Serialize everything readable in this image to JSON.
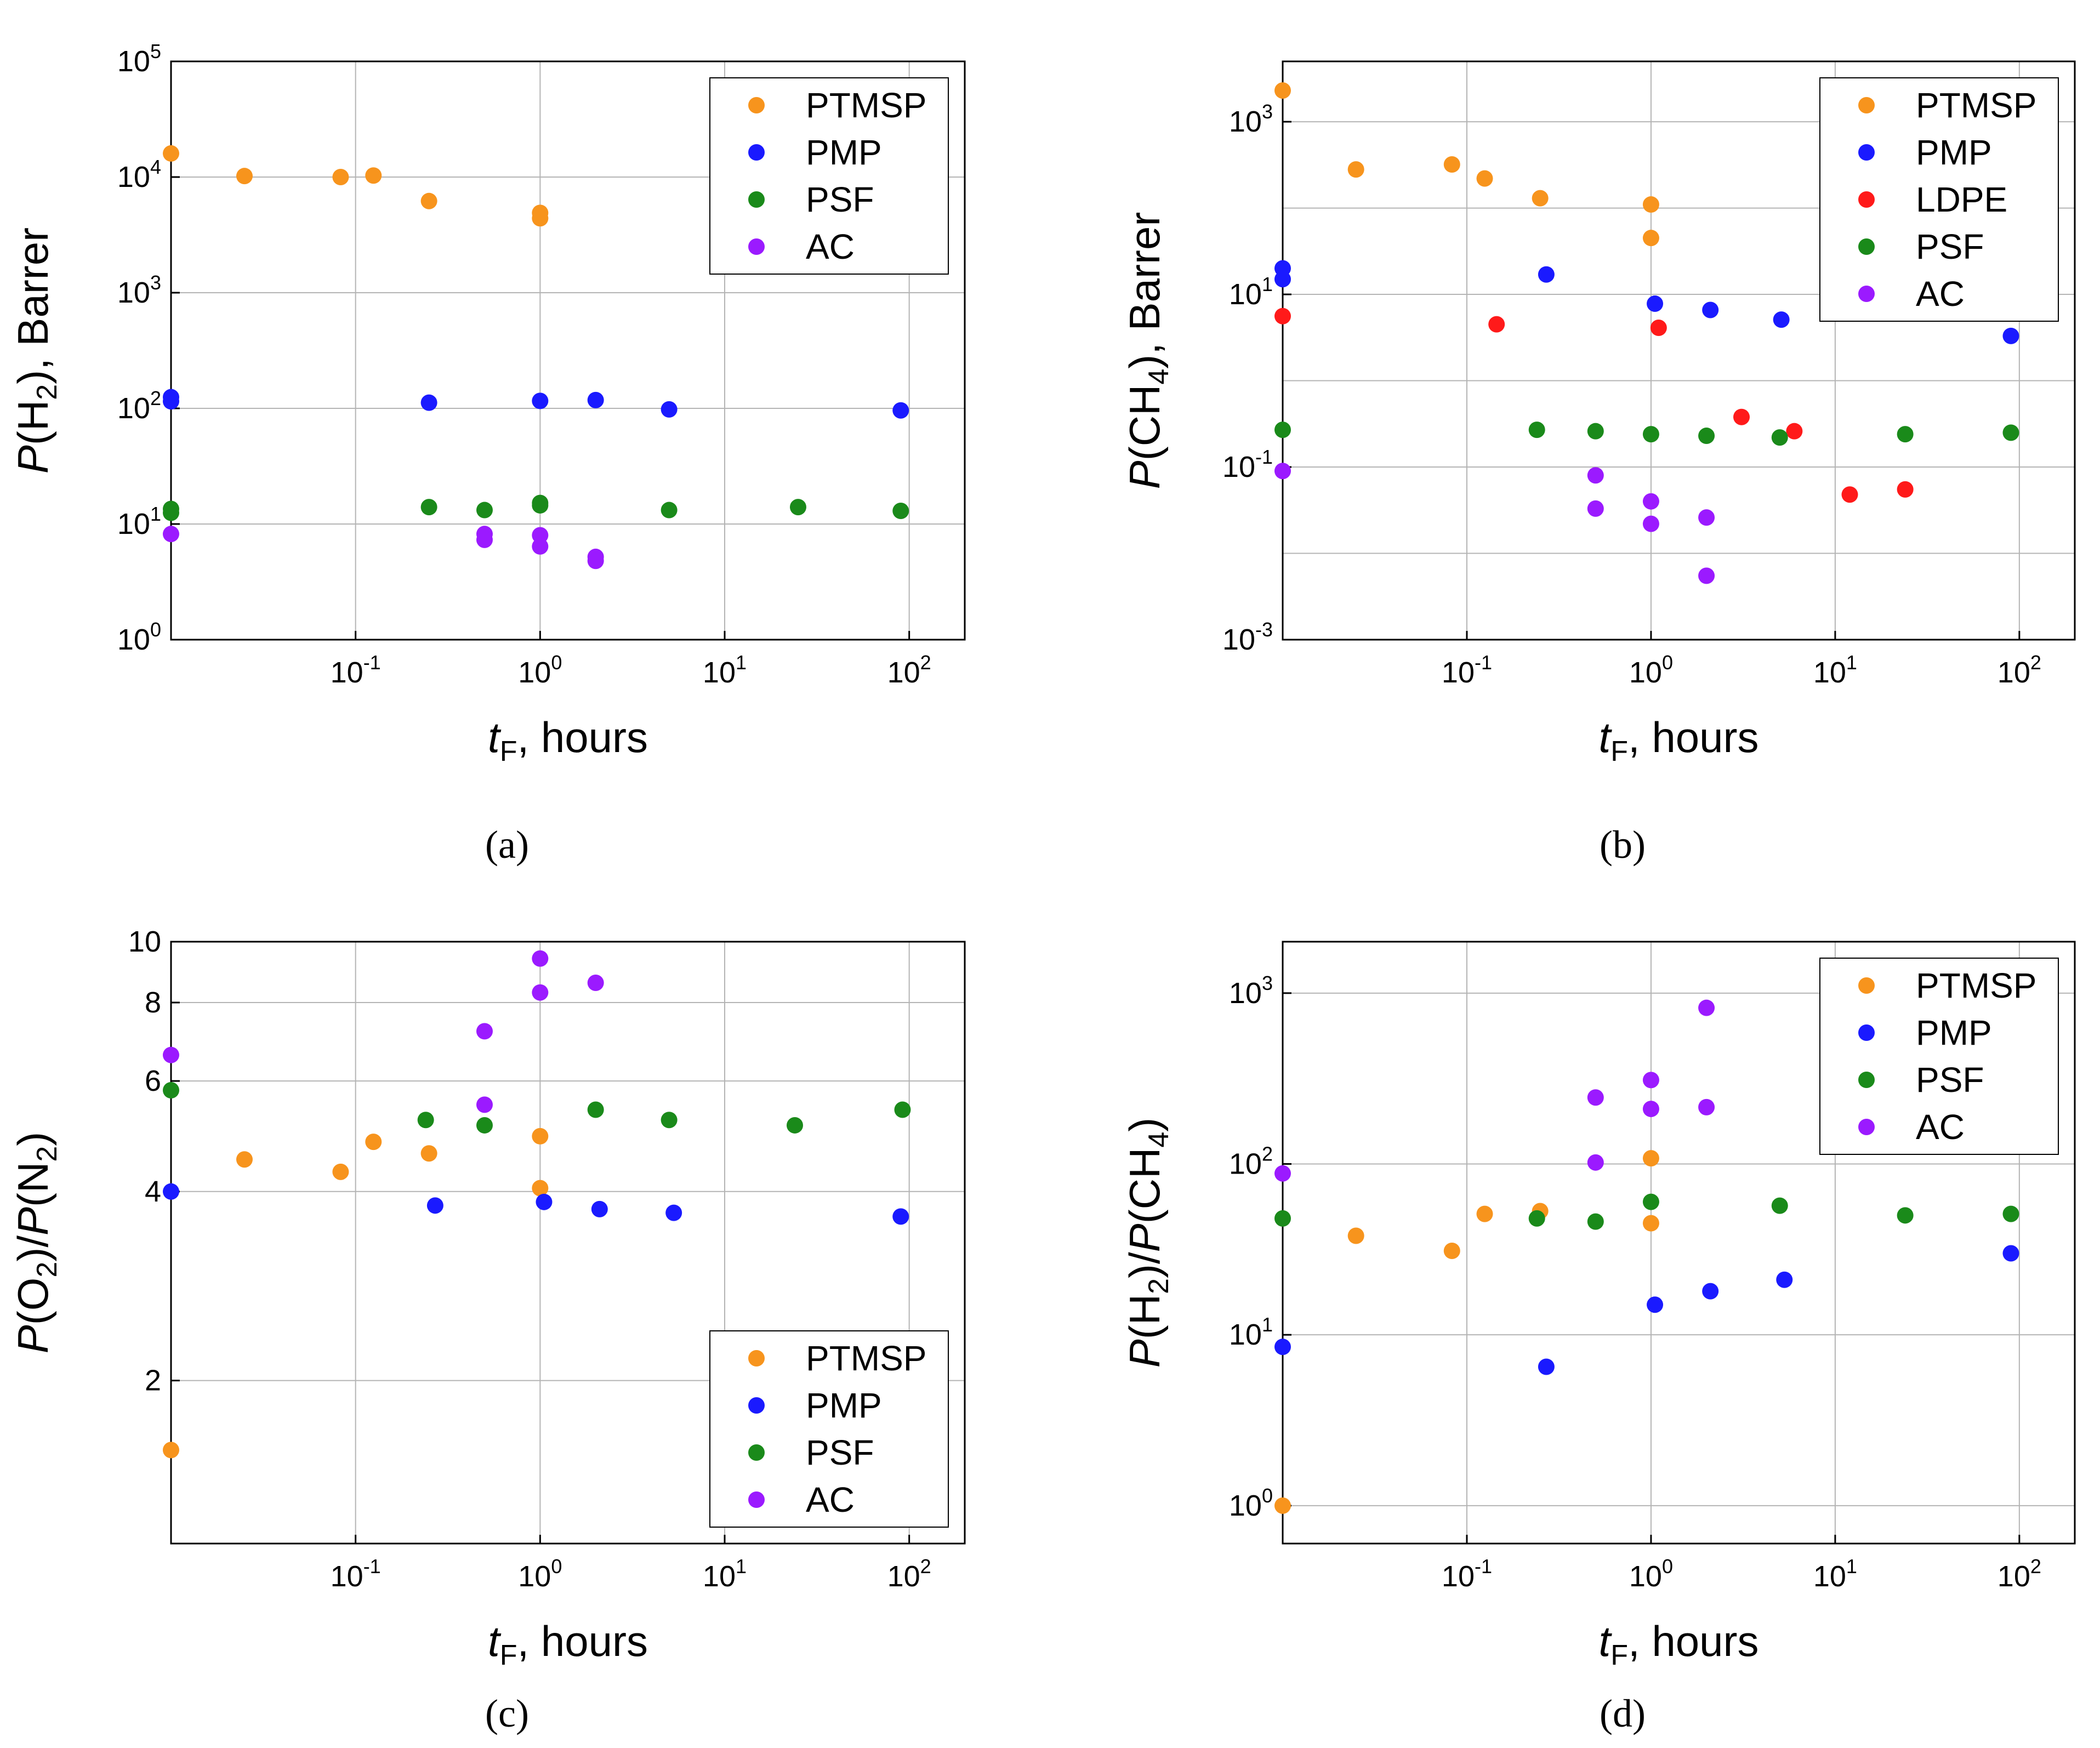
{
  "figure": {
    "panel_labels": [
      "(a)",
      "(b)",
      "(c)",
      "(d)"
    ]
  },
  "colors": {
    "PTMSP": "#f7941d",
    "PMP": "#1a1aff",
    "LDPE": "#ff1a1a",
    "PSF": "#1a8a1a",
    "AC": "#9b1aff"
  },
  "chart_data": [
    {
      "id": "a",
      "type": "scatter",
      "xscale": "log",
      "yscale": "log",
      "xlim": [
        0.01,
        200
      ],
      "ylim": [
        1,
        100000
      ],
      "xticks": [
        {
          "v": 0.1,
          "base": "10",
          "exp": "-1"
        },
        {
          "v": 1,
          "base": "10",
          "exp": "0"
        },
        {
          "v": 10,
          "base": "10",
          "exp": "1"
        },
        {
          "v": 100,
          "base": "10",
          "exp": "2"
        }
      ],
      "yticks": [
        {
          "v": 1,
          "base": "10",
          "exp": "0"
        },
        {
          "v": 10,
          "base": "10",
          "exp": "1"
        },
        {
          "v": 100,
          "base": "10",
          "exp": "2"
        },
        {
          "v": 1000,
          "base": "10",
          "exp": "3"
        },
        {
          "v": 10000,
          "base": "10",
          "exp": "4"
        },
        {
          "v": 100000,
          "base": "10",
          "exp": "5"
        }
      ],
      "xgrid": [
        0.1,
        1,
        10,
        100
      ],
      "ygrid": [
        1,
        10,
        100,
        1000,
        10000,
        100000
      ],
      "xlabel": {
        "italic": "t",
        "sub": "F",
        "rest": ", hours"
      },
      "ylabel": {
        "italic": "P",
        "pre": "(H",
        "sub": "2",
        "post": "), Barrer"
      },
      "legend": {
        "position": "top-right",
        "entries": [
          "PTMSP",
          "PMP",
          "PSF",
          "AC"
        ]
      },
      "series": [
        {
          "name": "PTMSP",
          "points": [
            [
              0.01,
              16000
            ],
            [
              0.025,
              10200
            ],
            [
              0.083,
              10000
            ],
            [
              0.125,
              10300
            ],
            [
              0.25,
              6200
            ],
            [
              1,
              4900
            ],
            [
              1,
              4400
            ]
          ]
        },
        {
          "name": "PMP",
          "points": [
            [
              0.01,
              125
            ],
            [
              0.01,
              115
            ],
            [
              0.25,
              112
            ],
            [
              1,
              116
            ],
            [
              2,
              118
            ],
            [
              5,
              98
            ],
            [
              90,
              96
            ]
          ]
        },
        {
          "name": "PSF",
          "points": [
            [
              0.01,
              13.5
            ],
            [
              0.01,
              12.5
            ],
            [
              0.25,
              14
            ],
            [
              0.5,
              13.2
            ],
            [
              1,
              15.2
            ],
            [
              1,
              14.5
            ],
            [
              5,
              13.2
            ],
            [
              25,
              14
            ],
            [
              90,
              13
            ]
          ]
        },
        {
          "name": "AC",
          "points": [
            [
              0.01,
              8.2
            ],
            [
              0.5,
              8.2
            ],
            [
              0.5,
              7.3
            ],
            [
              1,
              8
            ],
            [
              1,
              6.4
            ],
            [
              2,
              5.2
            ],
            [
              2,
              4.8
            ]
          ]
        }
      ]
    },
    {
      "id": "b",
      "type": "scatter",
      "xscale": "log",
      "yscale": "log",
      "xlim": [
        0.01,
        200
      ],
      "ylim": [
        0.001,
        5000
      ],
      "xticks": [
        {
          "v": 0.1,
          "base": "10",
          "exp": "-1"
        },
        {
          "v": 1,
          "base": "10",
          "exp": "0"
        },
        {
          "v": 10,
          "base": "10",
          "exp": "1"
        },
        {
          "v": 100,
          "base": "10",
          "exp": "2"
        }
      ],
      "yticks": [
        {
          "v": 0.001,
          "base": "10",
          "exp": "-3"
        },
        {
          "v": 0.1,
          "base": "10",
          "exp": "-1"
        },
        {
          "v": 10,
          "base": "10",
          "exp": "1"
        },
        {
          "v": 1000,
          "base": "10",
          "exp": "3"
        }
      ],
      "xgrid": [
        0.1,
        1,
        10,
        100
      ],
      "ygrid": [
        0.001,
        0.01,
        0.1,
        1,
        10,
        100,
        1000
      ],
      "xlabel": {
        "italic": "t",
        "sub": "F",
        "rest": ", hours"
      },
      "ylabel": {
        "italic": "P",
        "pre": "(CH",
        "sub": "4",
        "post": "), Barrer"
      },
      "legend": {
        "position": "top-right",
        "entries": [
          "PTMSP",
          "PMP",
          "LDPE",
          "PSF",
          "AC"
        ]
      },
      "series": [
        {
          "name": "PTMSP",
          "points": [
            [
              0.01,
              2300
            ],
            [
              0.025,
              280
            ],
            [
              0.083,
              320
            ],
            [
              0.125,
              220
            ],
            [
              0.25,
              130
            ],
            [
              1,
              110
            ],
            [
              1,
              45
            ]
          ]
        },
        {
          "name": "PMP",
          "points": [
            [
              0.01,
              20
            ],
            [
              0.01,
              15
            ],
            [
              0.27,
              17
            ],
            [
              1.05,
              7.8
            ],
            [
              2.1,
              6.6
            ],
            [
              5.1,
              5.1
            ],
            [
              90,
              3.3
            ]
          ]
        },
        {
          "name": "LDPE",
          "points": [
            [
              0.01,
              5.6
            ],
            [
              0.145,
              4.5
            ],
            [
              1.1,
              4.1
            ],
            [
              3.1,
              0.38
            ],
            [
              6,
              0.26
            ],
            [
              12,
              0.048
            ],
            [
              24,
              0.055
            ]
          ]
        },
        {
          "name": "PSF",
          "points": [
            [
              0.01,
              0.27
            ],
            [
              0.24,
              0.27
            ],
            [
              0.5,
              0.26
            ],
            [
              1,
              0.24
            ],
            [
              2,
              0.23
            ],
            [
              5,
              0.22
            ],
            [
              24,
              0.24
            ],
            [
              90,
              0.25
            ]
          ]
        },
        {
          "name": "AC",
          "points": [
            [
              0.01,
              0.09
            ],
            [
              0.5,
              0.08
            ],
            [
              0.5,
              0.033
            ],
            [
              1,
              0.04
            ],
            [
              1,
              0.022
            ],
            [
              2,
              0.026
            ],
            [
              2,
              0.0055
            ]
          ]
        }
      ]
    },
    {
      "id": "c",
      "type": "scatter",
      "xscale": "log",
      "yscale": "log",
      "xlim": [
        0.01,
        200
      ],
      "ylim": [
        1.1,
        10
      ],
      "xticks": [
        {
          "v": 0.1,
          "base": "10",
          "exp": "-1"
        },
        {
          "v": 1,
          "base": "10",
          "exp": "0"
        },
        {
          "v": 10,
          "base": "10",
          "exp": "1"
        },
        {
          "v": 100,
          "base": "10",
          "exp": "2"
        }
      ],
      "yticks": [
        {
          "v": 2,
          "label": "2"
        },
        {
          "v": 4,
          "label": "4"
        },
        {
          "v": 6,
          "label": "6"
        },
        {
          "v": 8,
          "label": "8"
        },
        {
          "v": 10,
          "label": "10"
        }
      ],
      "xgrid": [
        0.1,
        1,
        10,
        100
      ],
      "ygrid": [
        2,
        4,
        6,
        8,
        10
      ],
      "xlabel": {
        "italic": "t",
        "sub": "F",
        "rest": ", hours"
      },
      "ylabel": {
        "italic": "P",
        "pre": "(O",
        "sub": "2",
        "post": ")/",
        "italic2": "P",
        "pre2": "(N",
        "sub2": "2",
        "post2": ")"
      },
      "legend": {
        "position": "bottom-right",
        "entries": [
          "PTMSP",
          "PMP",
          "PSF",
          "AC"
        ]
      },
      "series": [
        {
          "name": "PTMSP",
          "points": [
            [
              0.01,
              1.55
            ],
            [
              0.025,
              4.5
            ],
            [
              0.083,
              4.3
            ],
            [
              0.125,
              4.8
            ],
            [
              0.25,
              4.6
            ],
            [
              1,
              4.9
            ],
            [
              1,
              4.05
            ]
          ]
        },
        {
          "name": "PMP",
          "points": [
            [
              0.01,
              4
            ],
            [
              0.27,
              3.8
            ],
            [
              1.05,
              3.85
            ],
            [
              2.1,
              3.75
            ],
            [
              5.3,
              3.7
            ],
            [
              90,
              3.65
            ]
          ]
        },
        {
          "name": "PSF",
          "points": [
            [
              0.01,
              5.8
            ],
            [
              0.24,
              5.2
            ],
            [
              0.5,
              5.1
            ],
            [
              2,
              5.4
            ],
            [
              5,
              5.2
            ],
            [
              24,
              5.1
            ],
            [
              92,
              5.4
            ]
          ]
        },
        {
          "name": "AC",
          "points": [
            [
              0.01,
              6.6
            ],
            [
              0.5,
              7.2
            ],
            [
              0.5,
              5.5
            ],
            [
              1,
              9.4
            ],
            [
              1,
              8.3
            ],
            [
              2,
              8.6
            ]
          ]
        }
      ]
    },
    {
      "id": "d",
      "type": "scatter",
      "xscale": "log",
      "yscale": "log",
      "xlim": [
        0.01,
        200
      ],
      "ylim": [
        0.6,
        2000
      ],
      "xticks": [
        {
          "v": 0.1,
          "base": "10",
          "exp": "-1"
        },
        {
          "v": 1,
          "base": "10",
          "exp": "0"
        },
        {
          "v": 10,
          "base": "10",
          "exp": "1"
        },
        {
          "v": 100,
          "base": "10",
          "exp": "2"
        }
      ],
      "yticks": [
        {
          "v": 1,
          "base": "10",
          "exp": "0"
        },
        {
          "v": 10,
          "base": "10",
          "exp": "1"
        },
        {
          "v": 100,
          "base": "10",
          "exp": "2"
        },
        {
          "v": 1000,
          "base": "10",
          "exp": "3"
        }
      ],
      "xgrid": [
        0.1,
        1,
        10,
        100
      ],
      "ygrid": [
        1,
        10,
        100,
        1000
      ],
      "xlabel": {
        "italic": "t",
        "sub": "F",
        "rest": ", hours"
      },
      "ylabel": {
        "italic": "P",
        "pre": "(H",
        "sub": "2",
        "post": ")/",
        "italic2": "P",
        "pre2": "(CH",
        "sub2": "4",
        "post2": ")"
      },
      "legend": {
        "position": "top-right",
        "entries": [
          "PTMSP",
          "PMP",
          "PSF",
          "AC"
        ]
      },
      "series": [
        {
          "name": "PTMSP",
          "points": [
            [
              0.01,
              1
            ],
            [
              0.025,
              38
            ],
            [
              0.083,
              31
            ],
            [
              0.125,
              51
            ],
            [
              0.25,
              53
            ],
            [
              1,
              108
            ],
            [
              1,
              45
            ]
          ]
        },
        {
          "name": "PMP",
          "points": [
            [
              0.01,
              8.5
            ],
            [
              0.27,
              6.5
            ],
            [
              1.05,
              15
            ],
            [
              2.1,
              18
            ],
            [
              5.3,
              21
            ],
            [
              90,
              30
            ]
          ]
        },
        {
          "name": "PSF",
          "points": [
            [
              0.01,
              48
            ],
            [
              0.24,
              48
            ],
            [
              0.5,
              46
            ],
            [
              1,
              60
            ],
            [
              5,
              57
            ],
            [
              24,
              50
            ],
            [
              90,
              51
            ]
          ]
        },
        {
          "name": "AC",
          "points": [
            [
              0.01,
              88
            ],
            [
              0.5,
              245
            ],
            [
              0.5,
              102
            ],
            [
              1,
              310
            ],
            [
              1,
              210
            ],
            [
              2,
              820
            ],
            [
              2,
              215
            ]
          ]
        }
      ]
    }
  ]
}
